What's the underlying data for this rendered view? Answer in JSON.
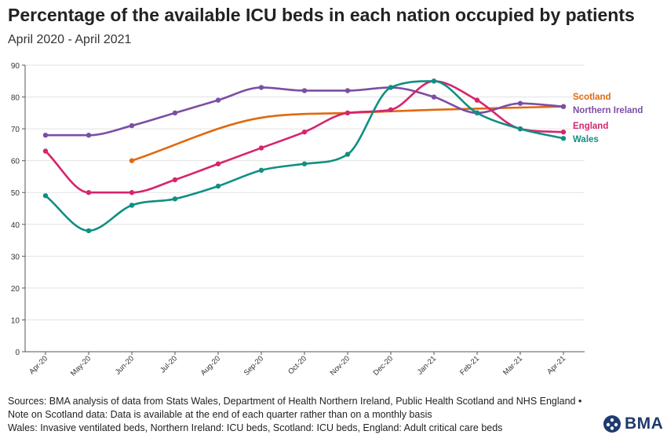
{
  "chart_data": {
    "type": "line",
    "title": "Percentage of the available ICU beds in each nation occupied by patients",
    "subtitle": "April 2020 - April 2021",
    "categories": [
      "Apr-20",
      "May-20",
      "Jun-20",
      "Jul-20",
      "Aug-20",
      "Sep-20",
      "Oct-20",
      "Nov-20",
      "Dec-20",
      "Jan-21",
      "Feb-21",
      "Mar-21",
      "Apr-21"
    ],
    "ylim": [
      0,
      90
    ],
    "yticks": [
      0,
      10,
      20,
      30,
      40,
      50,
      60,
      70,
      80,
      90
    ],
    "grid": true,
    "legend_placement": "right end of lines",
    "series": [
      {
        "name": "Scotland",
        "color": "#e0690f",
        "values": [
          null,
          null,
          60,
          null,
          null,
          73.5,
          null,
          75,
          null,
          76,
          null,
          null,
          77
        ],
        "markers": [
          2,
          12
        ]
      },
      {
        "name": "Northern Ireland",
        "color": "#7b4ea5",
        "values": [
          68,
          68,
          71,
          75,
          79,
          83,
          82,
          82,
          83,
          80,
          75,
          78,
          77
        ]
      },
      {
        "name": "England",
        "color": "#d6246e",
        "values": [
          63,
          50,
          50,
          54,
          59,
          64,
          69,
          75,
          76,
          85,
          79,
          70,
          69
        ]
      },
      {
        "name": "Wales",
        "color": "#0f8f83",
        "values": [
          49,
          38,
          46,
          48,
          52,
          57,
          59,
          62,
          83,
          85,
          75,
          70,
          67
        ]
      }
    ]
  },
  "footer": {
    "line1": "Sources: BMA analysis of data from Stats Wales, Department of Health Northern Ireland, Public Health Scotland and NHS England •",
    "line2": "Note on Scotland data: Data is available at the end of each quarter rather than on a monthly basis",
    "line3": "Wales: Invasive ventilated beds, Northern Ireland: ICU beds, Scotland: ICU beds, England: Adult critical care beds"
  },
  "logo": {
    "text": "BMA",
    "color": "#1f3a6e"
  }
}
